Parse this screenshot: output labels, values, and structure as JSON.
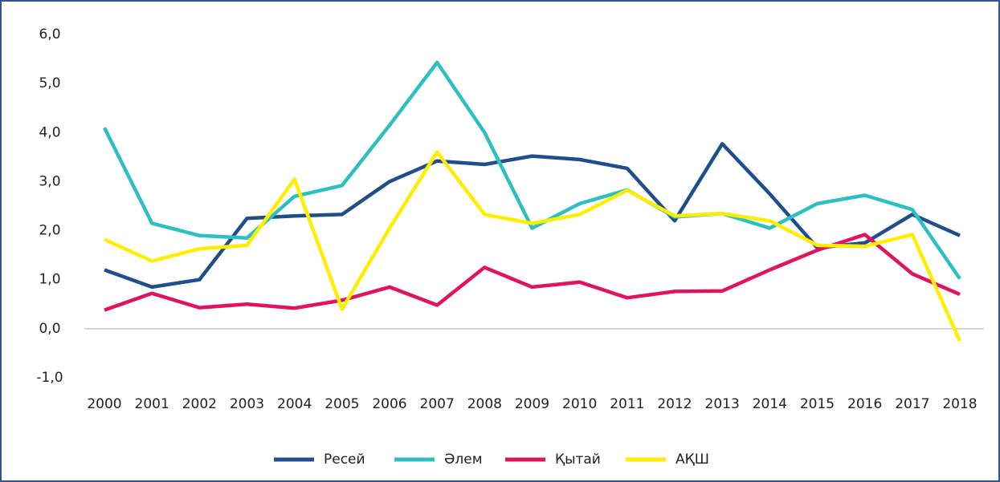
{
  "chart_data": {
    "type": "line",
    "categories": [
      "2000",
      "2001",
      "2002",
      "2003",
      "2004",
      "2005",
      "2006",
      "2007",
      "2008",
      "2009",
      "2010",
      "2011",
      "2012",
      "2013",
      "2014",
      "2015",
      "2016",
      "2017",
      "2018"
    ],
    "series": [
      {
        "name": "Ресей",
        "color": "#1f4e8a",
        "values": [
          1.2,
          0.85,
          1.0,
          2.25,
          2.3,
          2.33,
          3.0,
          3.42,
          3.35,
          3.52,
          3.45,
          3.27,
          2.2,
          3.77,
          2.75,
          1.65,
          1.75,
          2.33,
          1.9
        ]
      },
      {
        "name": "Әлем",
        "color": "#2ebfc0",
        "values": [
          4.1,
          2.15,
          1.9,
          1.85,
          2.7,
          2.92,
          4.15,
          5.43,
          4.0,
          2.05,
          2.55,
          2.83,
          2.28,
          2.35,
          2.05,
          2.55,
          2.72,
          2.43,
          1.02
        ]
      },
      {
        "name": "Қытай",
        "color": "#e0145e",
        "values": [
          0.38,
          0.72,
          0.43,
          0.5,
          0.42,
          0.58,
          0.85,
          0.48,
          1.25,
          0.85,
          0.95,
          0.63,
          0.76,
          0.77,
          1.2,
          1.6,
          1.92,
          1.12,
          0.7
        ]
      },
      {
        "name": "АҚШ",
        "color": "#ffee00",
        "values": [
          1.82,
          1.38,
          1.63,
          1.7,
          3.05,
          0.4,
          2.05,
          3.6,
          2.33,
          2.15,
          2.33,
          2.82,
          2.3,
          2.35,
          2.2,
          1.7,
          1.68,
          1.92,
          -0.25
        ]
      }
    ],
    "ylim": [
      -1,
      6
    ],
    "yticks": [
      {
        "value": -1,
        "label": "-1,0"
      },
      {
        "value": 0,
        "label": "0,0"
      },
      {
        "value": 1,
        "label": "1,0"
      },
      {
        "value": 2,
        "label": "2,0"
      },
      {
        "value": 3,
        "label": "3,0"
      },
      {
        "value": 4,
        "label": "4,0"
      },
      {
        "value": 5,
        "label": "5,0"
      },
      {
        "value": 6,
        "label": "6,0"
      }
    ],
    "grid": false,
    "legend": "bottom"
  }
}
